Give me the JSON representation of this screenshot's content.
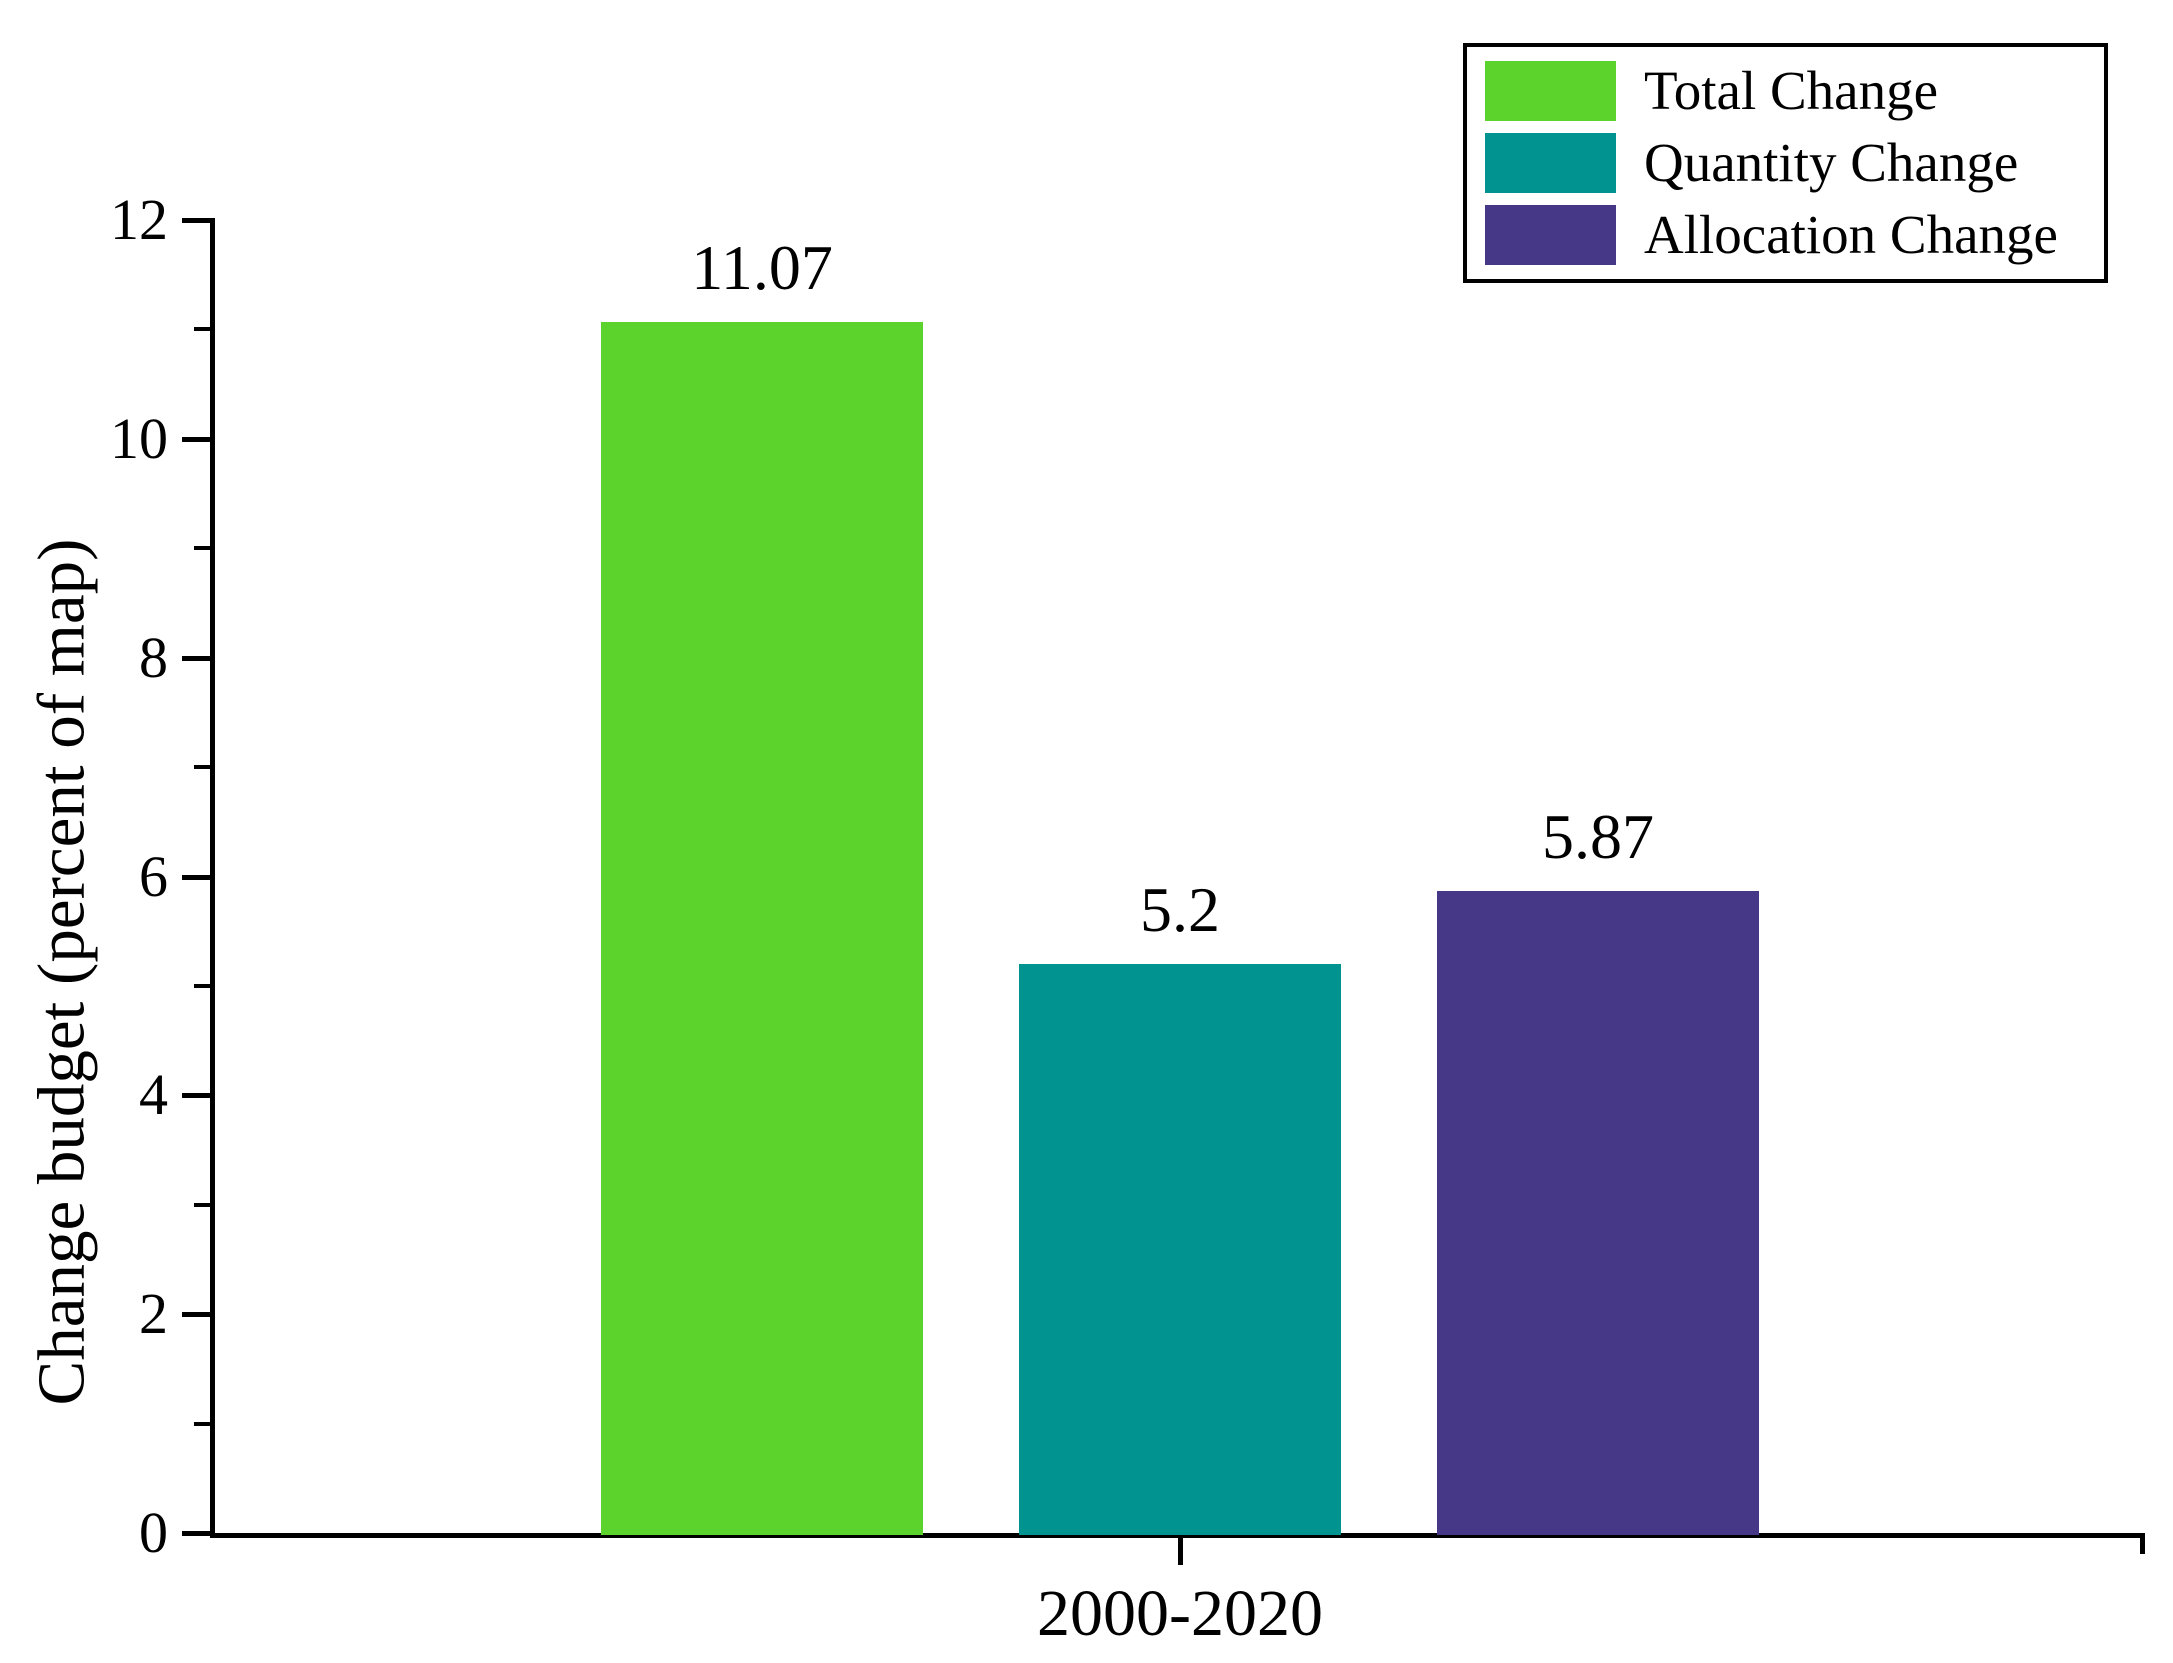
{
  "chart_data": {
    "type": "bar",
    "categories": [
      "2000-2020"
    ],
    "series": [
      {
        "name": "Total Change",
        "values": [
          11.07
        ],
        "value_label": "11.07",
        "color": "#5cd32d"
      },
      {
        "name": "Quantity Change",
        "values": [
          5.2
        ],
        "value_label": "5.2",
        "color": "#009390"
      },
      {
        "name": "Allocation Change",
        "values": [
          5.87
        ],
        "value_label": "5.87",
        "color": "#473787"
      }
    ],
    "title": "",
    "xlabel": "",
    "ylabel": "Change budget (percent of map)",
    "ylim": [
      0,
      12
    ],
    "yticks": [
      0,
      2,
      4,
      6,
      8,
      10,
      12
    ],
    "y_minor_ticks": [
      1,
      3,
      5,
      7,
      9,
      11
    ],
    "grid": false,
    "legend_position": "top-right",
    "axis_color": "#000000",
    "background_color": "#ffffff"
  }
}
